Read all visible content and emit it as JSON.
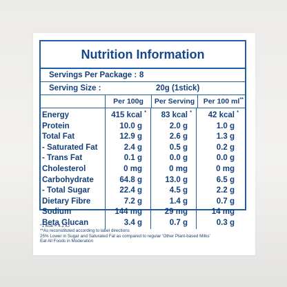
{
  "label": {
    "title": "Nutrition Information",
    "servings_per_package_label": "Servings Per Package :",
    "servings_per_package_value": "8",
    "serving_size_label": "Serving Size :",
    "serving_size_value": "20g (1stick)",
    "columns": [
      {
        "label": "Per 100g",
        "sup": ""
      },
      {
        "label": "Per Serving",
        "sup": ""
      },
      {
        "label": "Per 100 ml",
        "sup": "**"
      }
    ],
    "rows": [
      {
        "name": "Energy",
        "v1": "415 kcal",
        "s1": "*",
        "v2": "83 kcal",
        "s2": "*",
        "v3": "42 kcal",
        "s3": "*"
      },
      {
        "name": "Protein",
        "v1": "10.0 g",
        "s1": "",
        "v2": "2.0 g",
        "s2": "",
        "v3": "1.0 g",
        "s3": ""
      },
      {
        "name": "Total Fat",
        "v1": "12.9 g",
        "s1": "",
        "v2": "2.6 g",
        "s2": "",
        "v3": "1.3 g",
        "s3": ""
      },
      {
        "name": "- Saturated Fat",
        "v1": "2.4 g",
        "s1": "",
        "v2": "0.5 g",
        "s2": "",
        "v3": "0.2 g",
        "s3": ""
      },
      {
        "name": "- Trans Fat",
        "v1": "0.1 g",
        "s1": "",
        "v2": "0.0 g",
        "s2": "",
        "v3": "0.0 g",
        "s3": ""
      },
      {
        "name": "Cholesterol",
        "v1": "0 mg",
        "s1": "",
        "v2": "0 mg",
        "s2": "",
        "v3": "0 mg",
        "s3": ""
      },
      {
        "name": "Carbohydrate",
        "v1": "64.8 g",
        "s1": "",
        "v2": "13.0 g",
        "s2": "",
        "v3": "6.5 g",
        "s3": ""
      },
      {
        "name": "- Total Sugar",
        "v1": "22.4 g",
        "s1": "",
        "v2": "4.5 g",
        "s2": "",
        "v3": "2.2 g",
        "s3": ""
      },
      {
        "name": "Dietary Fibre",
        "v1": "7.2 g",
        "s1": "",
        "v2": "1.4 g",
        "s2": "",
        "v3": "0.7 g",
        "s3": ""
      },
      {
        "name": "Sodium",
        "v1": "144 mg",
        "s1": "",
        "v2": "29 mg",
        "s2": "",
        "v3": "14 mg",
        "s3": ""
      },
      {
        "name": "Beta Glucan",
        "v1": "3.4 g",
        "s1": "",
        "v2": "0.7 g",
        "s2": "",
        "v3": "0.3 g",
        "s3": ""
      }
    ],
    "notes": [
      "*1 kcal = 4.2 kJ",
      "**As reconstituted according to label directions",
      "25% Lower in Sugar and Saturated Fat as compared to regular 'Other Plant-based Milks'",
      "Eat All Foods in Moderation"
    ]
  }
}
